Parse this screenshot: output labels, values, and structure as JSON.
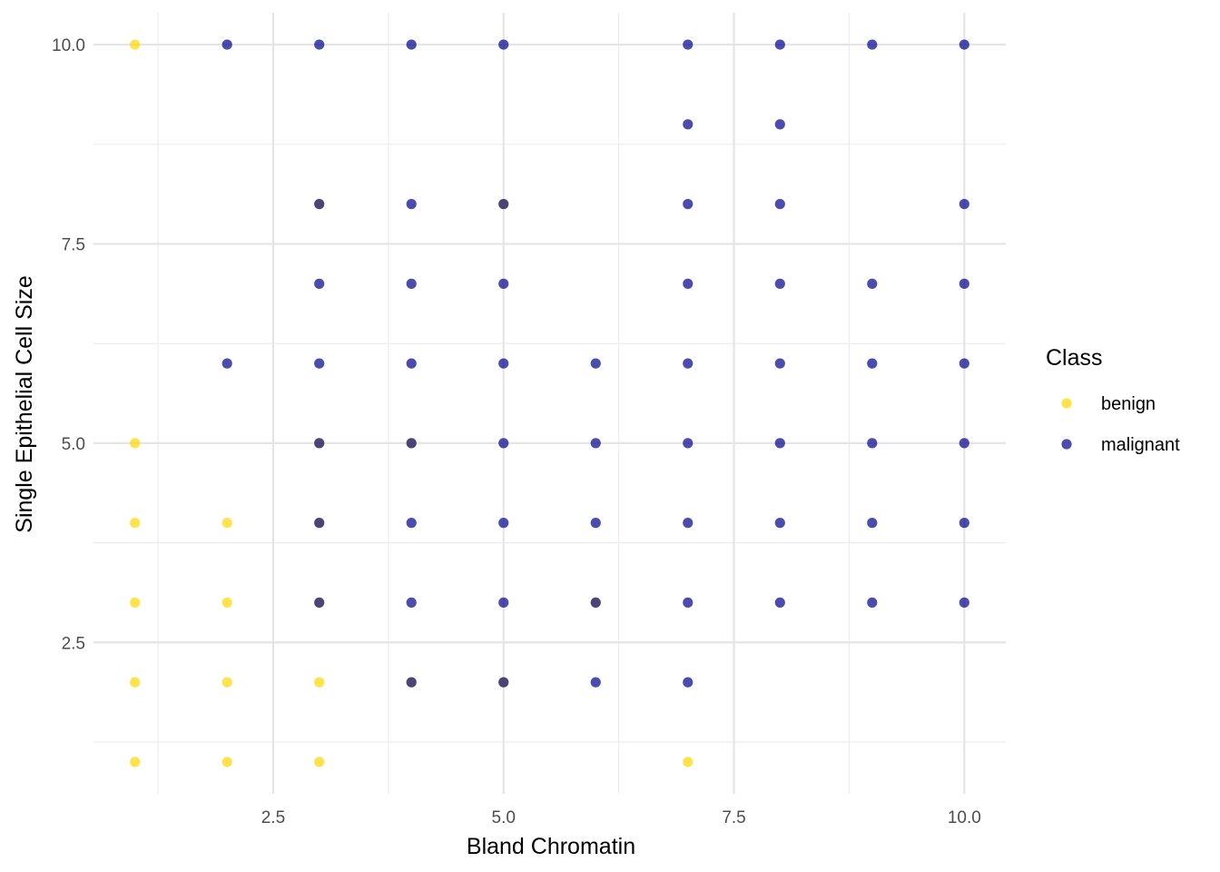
{
  "chart_data": {
    "type": "scatter",
    "title": "",
    "xlabel": "Bland Chromatin",
    "ylabel": "Single Epithelial Cell Size",
    "xlim": [
      0.55,
      10.45
    ],
    "ylim": [
      0.6,
      10.4
    ],
    "x_ticks": [
      2.5,
      5.0,
      7.5,
      10.0
    ],
    "x_tick_labels": [
      "2.5",
      "5.0",
      "7.5",
      "10.0"
    ],
    "y_ticks": [
      2.5,
      5.0,
      7.5,
      10.0
    ],
    "y_tick_labels": [
      "2.5",
      "5.0",
      "7.5",
      "10.0"
    ],
    "grid": true,
    "legend": {
      "title": "Class",
      "position": "right"
    },
    "series": [
      {
        "name": "benign",
        "color": "#FFD700",
        "points": [
          [
            1,
            1
          ],
          [
            1,
            2
          ],
          [
            1,
            3
          ],
          [
            1,
            4
          ],
          [
            1,
            5
          ],
          [
            1,
            10
          ],
          [
            2,
            1
          ],
          [
            2,
            2
          ],
          [
            2,
            3
          ],
          [
            2,
            4
          ],
          [
            3,
            1
          ],
          [
            3,
            2
          ],
          [
            3,
            3
          ],
          [
            3,
            4
          ],
          [
            3,
            5
          ],
          [
            3,
            8
          ],
          [
            4,
            2
          ],
          [
            4,
            5
          ],
          [
            5,
            2
          ],
          [
            5,
            8
          ],
          [
            6,
            3
          ],
          [
            7,
            1
          ]
        ]
      },
      {
        "name": "malignant",
        "color": "#00008B",
        "points": [
          [
            2,
            6
          ],
          [
            2,
            10
          ],
          [
            3,
            3
          ],
          [
            3,
            4
          ],
          [
            3,
            5
          ],
          [
            3,
            6
          ],
          [
            3,
            7
          ],
          [
            3,
            8
          ],
          [
            3,
            10
          ],
          [
            4,
            2
          ],
          [
            4,
            3
          ],
          [
            4,
            4
          ],
          [
            4,
            5
          ],
          [
            4,
            6
          ],
          [
            4,
            7
          ],
          [
            4,
            8
          ],
          [
            4,
            10
          ],
          [
            5,
            2
          ],
          [
            5,
            3
          ],
          [
            5,
            4
          ],
          [
            5,
            5
          ],
          [
            5,
            6
          ],
          [
            5,
            7
          ],
          [
            5,
            8
          ],
          [
            5,
            10
          ],
          [
            6,
            2
          ],
          [
            6,
            3
          ],
          [
            6,
            4
          ],
          [
            6,
            5
          ],
          [
            6,
            6
          ],
          [
            7,
            2
          ],
          [
            7,
            3
          ],
          [
            7,
            4
          ],
          [
            7,
            5
          ],
          [
            7,
            6
          ],
          [
            7,
            7
          ],
          [
            7,
            8
          ],
          [
            7,
            9
          ],
          [
            7,
            10
          ],
          [
            8,
            3
          ],
          [
            8,
            4
          ],
          [
            8,
            5
          ],
          [
            8,
            6
          ],
          [
            8,
            7
          ],
          [
            8,
            8
          ],
          [
            8,
            9
          ],
          [
            8,
            10
          ],
          [
            9,
            3
          ],
          [
            9,
            4
          ],
          [
            9,
            5
          ],
          [
            9,
            6
          ],
          [
            9,
            7
          ],
          [
            9,
            10
          ],
          [
            10,
            3
          ],
          [
            10,
            4
          ],
          [
            10,
            5
          ],
          [
            10,
            6
          ],
          [
            10,
            7
          ],
          [
            10,
            8
          ],
          [
            10,
            10
          ]
        ]
      }
    ]
  }
}
